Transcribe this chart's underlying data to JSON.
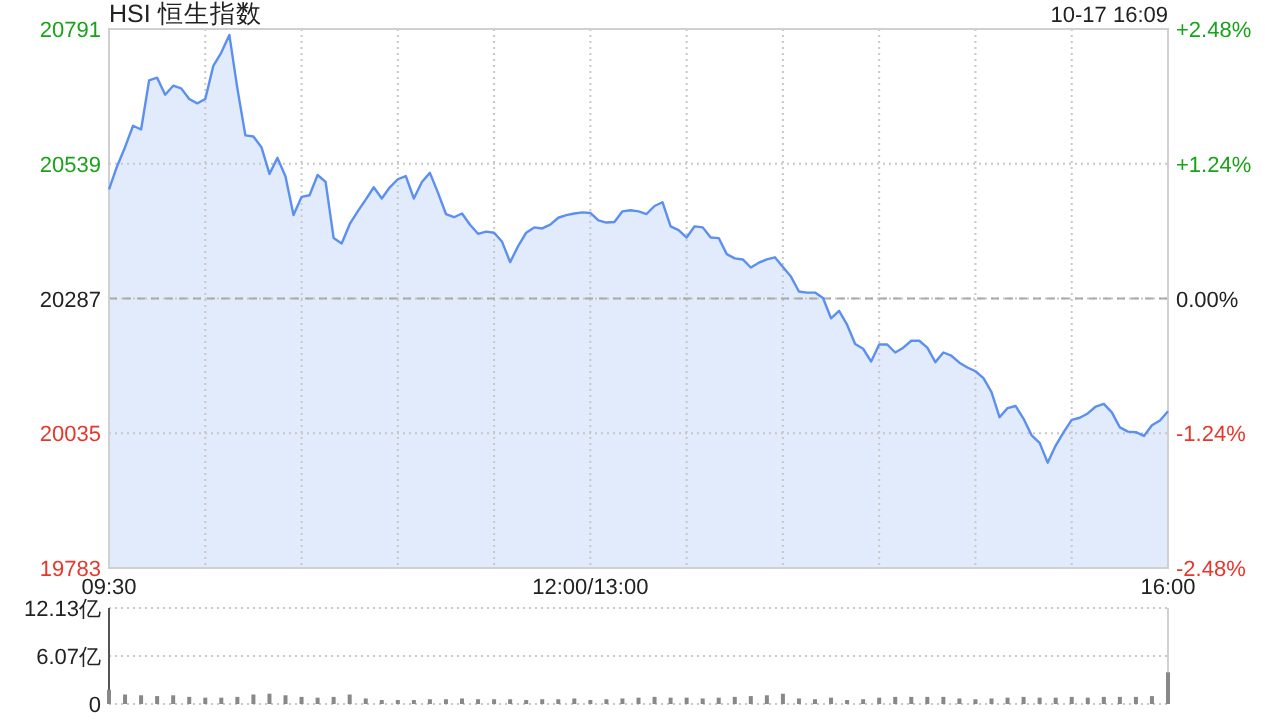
{
  "chart_data": [
    {
      "type": "area",
      "title": "HSI 恒生指数",
      "annotations": [
        "10-17 16:09"
      ],
      "color": "#5b8ff0",
      "categories": [
        "09:30",
        null,
        null,
        null,
        null,
        null,
        null,
        null,
        null,
        null,
        null,
        null,
        null,
        null,
        null,
        null,
        null,
        null,
        null,
        null,
        null,
        null,
        null,
        null,
        null,
        null,
        null,
        null,
        null,
        null,
        null,
        null,
        null,
        null,
        null,
        null,
        null,
        null,
        null,
        null,
        null,
        null,
        null,
        null,
        null,
        null,
        null,
        null,
        null,
        null,
        null,
        null,
        null,
        null,
        null,
        null,
        null,
        null,
        null,
        null,
        "12:00/13:00",
        null,
        null,
        null,
        null,
        null,
        null,
        null,
        null,
        null,
        null,
        null,
        null,
        null,
        null,
        null,
        null,
        null,
        null,
        null,
        null,
        null,
        null,
        null,
        null,
        null,
        null,
        null,
        null,
        null,
        null,
        null,
        null,
        null,
        null,
        null,
        null,
        null,
        null,
        null,
        null,
        null,
        null,
        null,
        null,
        null,
        null,
        null,
        null,
        null,
        null,
        null,
        null,
        null,
        null,
        null,
        null,
        null,
        null,
        null,
        null,
        null,
        null,
        null,
        null,
        null,
        null,
        null,
        null,
        null,
        null,
        null,
        "16:00"
      ],
      "values": [
        20491,
        20534,
        20570,
        20610,
        20603,
        20695,
        20700,
        20668,
        20685,
        20680,
        20660,
        20652,
        20660,
        20722,
        20747,
        20780,
        20680,
        20592,
        20590,
        20570,
        20520,
        20550,
        20515,
        20443,
        20477,
        20480,
        20518,
        20505,
        20400,
        20390,
        20426,
        20450,
        20472,
        20495,
        20474,
        20495,
        20510,
        20516,
        20474,
        20505,
        20522,
        20485,
        20445,
        20439,
        20446,
        20425,
        20408,
        20412,
        20410,
        20393,
        20355,
        20385,
        20410,
        20420,
        20418,
        20425,
        20438,
        20443,
        20446,
        20448,
        20447,
        20433,
        20429,
        20430,
        20450,
        20452,
        20450,
        20445,
        20460,
        20467,
        20422,
        20415,
        20401,
        20422,
        20420,
        20401,
        20400,
        20370,
        20362,
        20360,
        20345,
        20354,
        20360,
        20364,
        20346,
        20328,
        20300,
        20298,
        20298,
        20288,
        20250,
        20264,
        20238,
        20202,
        20193,
        20169,
        20201,
        20201,
        20186,
        20195,
        20208,
        20208,
        20195,
        20168,
        20186,
        20180,
        20167,
        20158,
        20151,
        20138,
        20112,
        20065,
        20082,
        20086,
        20062,
        20031,
        20017,
        19980,
        20012,
        20037,
        20060,
        20064,
        20072,
        20085,
        20090,
        20074,
        20046,
        20038,
        20037,
        20030,
        20050,
        20059,
        20076
      ],
      "ylim": [
        19783,
        20791
      ],
      "yticks": [
        19783,
        20035,
        20287,
        20539,
        20791
      ],
      "y2lim": [
        -2.48,
        2.48
      ],
      "y2ticks": [
        {
          "value": -2.48,
          "label": "-2.48%"
        },
        {
          "value": -1.24,
          "label": "-1.24%"
        },
        {
          "value": 0,
          "label": "0.00%"
        },
        {
          "value": 1.24,
          "label": "+1.24%"
        },
        {
          "value": 2.48,
          "label": "+2.48%"
        }
      ],
      "ref_lines": [
        {
          "axis": "y",
          "value": 20287,
          "line_style": "dashed",
          "color": "#aaaaaa"
        }
      ],
      "grid": true
    },
    {
      "type": "bar",
      "color": "#888888",
      "tick_labels": "y",
      "grid": "y",
      "categories": [
        null,
        null,
        null,
        null,
        null,
        null,
        null,
        null,
        null,
        null,
        null,
        null,
        null,
        null,
        null,
        null,
        null,
        null,
        null,
        null,
        null,
        null,
        null,
        null,
        null,
        null,
        null,
        null,
        null,
        null,
        null,
        null,
        null,
        null,
        null,
        null,
        null,
        null,
        null,
        null,
        null,
        null,
        null,
        null,
        null,
        null,
        null,
        null,
        null,
        null,
        null,
        null,
        null,
        null,
        null,
        null,
        null,
        null,
        null,
        null,
        null,
        null,
        null,
        null,
        null,
        null,
        null
      ],
      "values": [
        1.8,
        1.2,
        1.1,
        1.0,
        1.1,
        0.9,
        0.8,
        0.8,
        0.9,
        1.2,
        1.3,
        1.1,
        0.9,
        0.8,
        0.9,
        1.2,
        0.7,
        0.5,
        0.5,
        0.5,
        0.6,
        0.6,
        0.7,
        0.6,
        0.6,
        0.6,
        0.5,
        0.6,
        0.6,
        0.7,
        0.5,
        0.6,
        0.7,
        0.8,
        0.9,
        0.8,
        0.8,
        0.7,
        0.8,
        0.9,
        1.0,
        1.1,
        1.3,
        0.7,
        0.6,
        0.8,
        0.5,
        0.6,
        0.8,
        0.9,
        0.9,
        0.9,
        0.9,
        0.7,
        0.6,
        0.7,
        0.8,
        0.9,
        0.8,
        0.8,
        0.9,
        0.8,
        0.9,
        0.9,
        0.9,
        1.0,
        4.0
      ],
      "ylim": [
        0,
        12.13
      ],
      "yticks": [
        {
          "value": 0,
          "label": "0"
        },
        {
          "value": 6.07,
          "label": "6.07亿"
        },
        {
          "value": 12.13,
          "label": "12.13亿"
        }
      ]
    }
  ]
}
